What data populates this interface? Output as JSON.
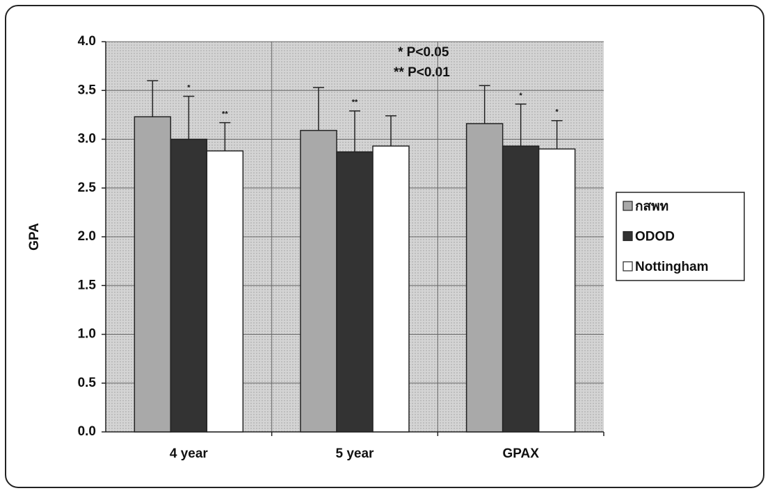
{
  "chart_data": {
    "type": "bar",
    "y_label": "GPA",
    "annotations": [
      "* P<0.05",
      "** P<0.01"
    ],
    "categories": [
      "4 year",
      "5 year",
      "GPAX"
    ],
    "series": [
      {
        "name": "กสพท",
        "color": "#a9a9a9",
        "values": [
          3.23,
          3.09,
          3.16
        ],
        "errors": [
          0.37,
          0.44,
          0.39
        ]
      },
      {
        "name": "ODOD",
        "color": "#333333",
        "values": [
          3.0,
          2.87,
          2.93
        ],
        "errors": [
          0.44,
          0.42,
          0.43
        ],
        "significance": [
          "*",
          "**",
          "*"
        ]
      },
      {
        "name": "Nottingham",
        "color": "#ffffff",
        "values": [
          2.88,
          2.93,
          2.9
        ],
        "errors": [
          0.29,
          0.31,
          0.29
        ],
        "significance": [
          "**",
          null,
          "*"
        ]
      }
    ],
    "ylim": [
      0,
      4
    ],
    "yticks": [
      {
        "value": 0,
        "label": "0.0"
      },
      0.5,
      {
        "value": 1,
        "label": "1.0"
      },
      1.5,
      {
        "value": 2,
        "label": "2.0"
      },
      2.5,
      {
        "value": 3,
        "label": "3.0"
      },
      3.5,
      {
        "value": 4,
        "label": "4.0"
      }
    ],
    "grid": true,
    "legend": "right"
  }
}
